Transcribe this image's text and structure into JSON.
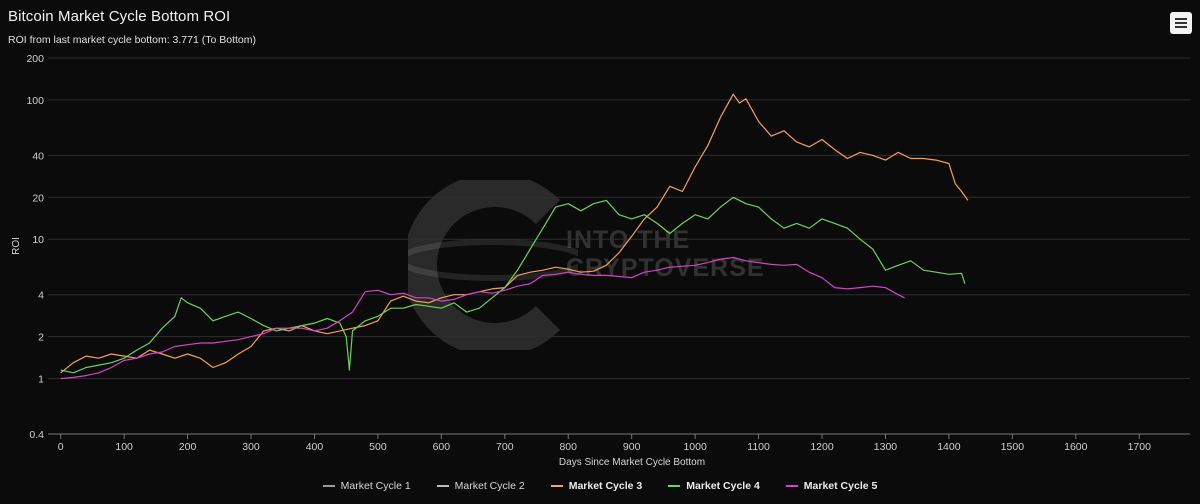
{
  "title": "Bitcoin Market Cycle Bottom ROI",
  "subtitle": "ROI from last market cycle bottom: 3.771 (To Bottom)",
  "watermark": {
    "line1": "INTO THE",
    "line2": "CRYPTOVERSE"
  },
  "colors": {
    "background": "#0b0b0b",
    "grid": "#2e2e2e",
    "cycle1": "#9a9a9a",
    "cycle2": "#bcbcbc",
    "cycle3": "#f4a259",
    "cycle4": "#6fd35a",
    "cycle5": "#d246c8"
  },
  "icons": {
    "menu": "hamburger-menu-icon"
  },
  "chart_data": {
    "type": "line",
    "title": "Bitcoin Market Cycle Bottom ROI",
    "subtitle": "ROI from last market cycle bottom: 3.771 (To Bottom)",
    "xlabel": "Days Since Market Cycle Bottom",
    "ylabel": "ROI",
    "y_scale": "log",
    "xlim": [
      -20,
      1780
    ],
    "ylim": [
      0.4,
      200
    ],
    "x_ticks": [
      0,
      100,
      200,
      300,
      400,
      500,
      600,
      700,
      800,
      900,
      1000,
      1100,
      1200,
      1300,
      1400,
      1500,
      1600,
      1700
    ],
    "y_ticks": [
      0.4,
      1,
      2,
      4,
      10,
      20,
      40,
      100,
      200
    ],
    "grid": true,
    "legend_position": "bottom",
    "series": [
      {
        "name": "Market Cycle 1",
        "x": [],
        "values": []
      },
      {
        "name": "Market Cycle 2",
        "x": [],
        "values": []
      },
      {
        "name": "Market Cycle 3",
        "x": [
          0,
          20,
          40,
          60,
          80,
          100,
          120,
          140,
          160,
          180,
          200,
          220,
          240,
          260,
          280,
          300,
          320,
          340,
          360,
          380,
          400,
          420,
          440,
          460,
          480,
          500,
          520,
          540,
          560,
          580,
          600,
          620,
          640,
          660,
          680,
          700,
          720,
          740,
          760,
          780,
          800,
          820,
          840,
          860,
          880,
          900,
          920,
          940,
          960,
          980,
          1000,
          1020,
          1040,
          1060,
          1070,
          1080,
          1100,
          1120,
          1140,
          1160,
          1180,
          1200,
          1220,
          1240,
          1260,
          1280,
          1300,
          1320,
          1340,
          1360,
          1380,
          1400,
          1410,
          1420,
          1430
        ],
        "values": [
          1.1,
          1.3,
          1.45,
          1.4,
          1.5,
          1.45,
          1.4,
          1.6,
          1.5,
          1.4,
          1.5,
          1.4,
          1.2,
          1.3,
          1.5,
          1.7,
          2.2,
          2.3,
          2.2,
          2.4,
          2.2,
          2.1,
          2.2,
          2.3,
          2.4,
          2.6,
          3.6,
          3.9,
          3.6,
          3.5,
          3.8,
          4.0,
          4.0,
          4.2,
          4.4,
          4.5,
          5.5,
          5.8,
          6.0,
          6.3,
          6.1,
          5.8,
          5.9,
          6.5,
          8.0,
          10.5,
          14.0,
          17.0,
          24.0,
          22.0,
          33.0,
          47.0,
          75.0,
          110.0,
          95.0,
          102.0,
          70.0,
          55.0,
          60.0,
          50.0,
          46.0,
          52.0,
          44.0,
          38.0,
          42.0,
          40.0,
          37.0,
          42.0,
          38.0,
          38.0,
          37.0,
          35.0,
          25.0,
          22.0,
          19.0
        ]
      },
      {
        "name": "Market Cycle 4",
        "x": [
          0,
          20,
          40,
          60,
          80,
          100,
          120,
          140,
          160,
          180,
          190,
          200,
          220,
          240,
          260,
          280,
          300,
          320,
          340,
          360,
          380,
          400,
          420,
          440,
          450,
          455,
          460,
          480,
          500,
          520,
          540,
          560,
          580,
          600,
          620,
          640,
          660,
          680,
          700,
          720,
          740,
          760,
          780,
          800,
          820,
          840,
          860,
          880,
          900,
          920,
          940,
          960,
          980,
          1000,
          1020,
          1040,
          1060,
          1080,
          1100,
          1120,
          1140,
          1160,
          1180,
          1200,
          1220,
          1240,
          1260,
          1280,
          1300,
          1320,
          1340,
          1360,
          1380,
          1400,
          1420,
          1425
        ],
        "values": [
          1.15,
          1.1,
          1.2,
          1.25,
          1.3,
          1.4,
          1.6,
          1.8,
          2.3,
          2.8,
          3.8,
          3.5,
          3.2,
          2.6,
          2.8,
          3.0,
          2.7,
          2.4,
          2.2,
          2.3,
          2.4,
          2.5,
          2.7,
          2.5,
          2.0,
          1.15,
          2.2,
          2.6,
          2.8,
          3.2,
          3.2,
          3.4,
          3.3,
          3.2,
          3.5,
          3.0,
          3.2,
          3.8,
          4.5,
          6.0,
          8.5,
          12.0,
          17.0,
          18.0,
          16.0,
          18.0,
          19.0,
          15.0,
          14.0,
          15.0,
          13.0,
          11.0,
          13.0,
          15.0,
          14.0,
          17.0,
          20.0,
          18.0,
          17.0,
          14.0,
          12.0,
          13.0,
          12.0,
          14.0,
          13.0,
          12.0,
          10.0,
          8.5,
          6.0,
          6.5,
          7.0,
          6.0,
          5.8,
          5.6,
          5.7,
          4.8
        ]
      },
      {
        "name": "Market Cycle 5",
        "x": [
          0,
          20,
          40,
          60,
          80,
          100,
          120,
          140,
          160,
          180,
          200,
          220,
          240,
          260,
          280,
          300,
          320,
          340,
          360,
          380,
          400,
          420,
          440,
          460,
          480,
          500,
          520,
          540,
          560,
          580,
          600,
          620,
          640,
          660,
          680,
          700,
          720,
          740,
          760,
          780,
          800,
          820,
          840,
          860,
          880,
          900,
          920,
          940,
          960,
          980,
          1000,
          1020,
          1040,
          1060,
          1080,
          1100,
          1120,
          1140,
          1160,
          1180,
          1200,
          1220,
          1240,
          1260,
          1280,
          1300,
          1320,
          1330
        ],
        "values": [
          1.0,
          1.02,
          1.05,
          1.1,
          1.2,
          1.35,
          1.4,
          1.5,
          1.55,
          1.7,
          1.75,
          1.8,
          1.8,
          1.85,
          1.9,
          2.0,
          2.1,
          2.3,
          2.3,
          2.3,
          2.2,
          2.3,
          2.6,
          3.0,
          4.2,
          4.3,
          4.0,
          4.1,
          3.8,
          3.8,
          3.6,
          3.7,
          4.0,
          4.2,
          4.1,
          4.3,
          4.6,
          4.8,
          5.5,
          5.6,
          5.8,
          5.6,
          5.5,
          5.5,
          5.4,
          5.3,
          5.8,
          6.0,
          6.3,
          6.4,
          6.5,
          6.8,
          7.2,
          7.4,
          7.0,
          6.8,
          6.6,
          6.5,
          6.6,
          5.8,
          5.3,
          4.5,
          4.4,
          4.5,
          4.6,
          4.5,
          4.0,
          3.8
        ]
      }
    ]
  }
}
